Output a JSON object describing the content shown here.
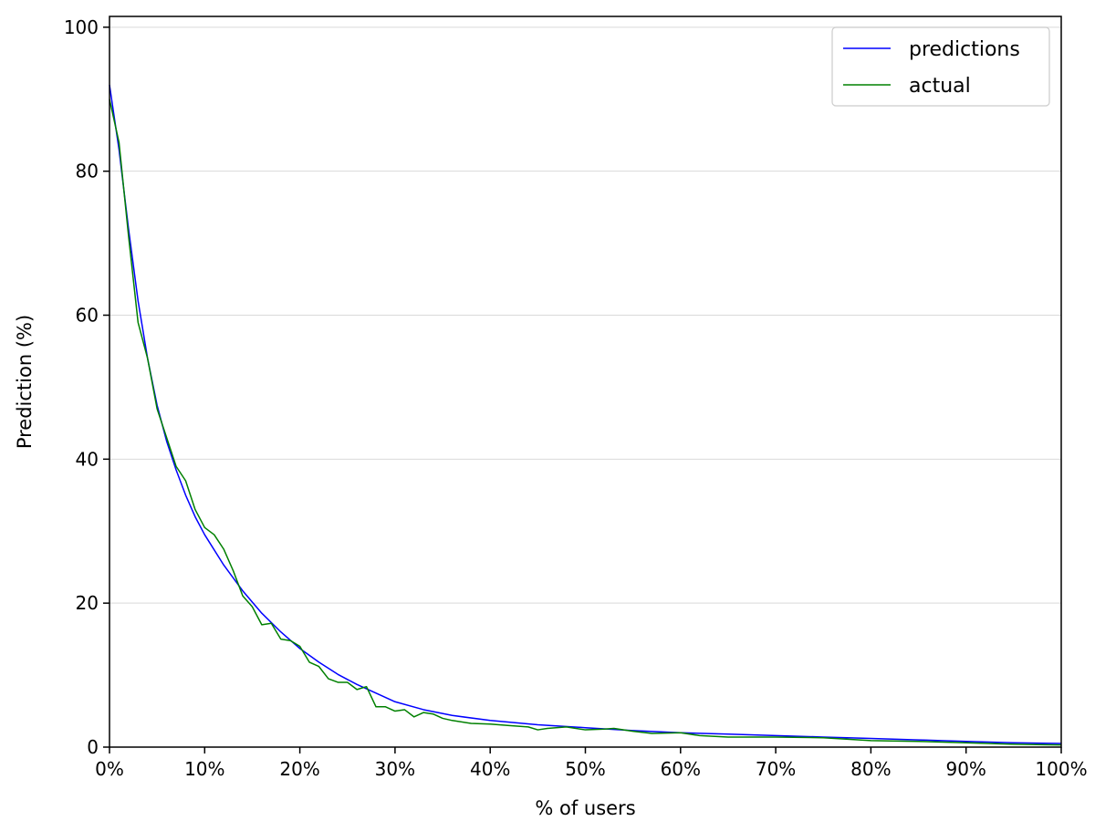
{
  "chart_data": {
    "type": "line",
    "title": "",
    "xlabel": "% of users",
    "ylabel": "Prediction (%)",
    "xlim": [
      0,
      100
    ],
    "ylim": [
      0,
      101.5
    ],
    "x_ticks": [
      0,
      10,
      20,
      30,
      40,
      50,
      60,
      70,
      80,
      90,
      100
    ],
    "x_tick_labels": [
      "0%",
      "10%",
      "20%",
      "30%",
      "40%",
      "50%",
      "60%",
      "70%",
      "80%",
      "90%",
      "100%"
    ],
    "y_ticks": [
      0,
      20,
      40,
      60,
      80,
      100
    ],
    "y_tick_labels": [
      "0",
      "20",
      "40",
      "60",
      "80",
      "100"
    ],
    "grid": "horizontal",
    "legend": "top-right",
    "series": [
      {
        "name": "predictions",
        "color": "#0000ff",
        "x": [
          0,
          1,
          2,
          3,
          4,
          5,
          6,
          7,
          8,
          9,
          10,
          12,
          14,
          16,
          18,
          20,
          22,
          24,
          26,
          28,
          30,
          33,
          36,
          40,
          45,
          50,
          55,
          60,
          65,
          70,
          75,
          80,
          85,
          90,
          95,
          100
        ],
        "y": [
          92,
          83,
          72,
          62,
          54,
          47.5,
          42.5,
          38.5,
          35,
          32,
          29.5,
          25.3,
          21.7,
          18.6,
          16,
          13.7,
          11.8,
          10.1,
          8.7,
          7.5,
          6.3,
          5.2,
          4.4,
          3.7,
          3.1,
          2.7,
          2.3,
          2.0,
          1.8,
          1.6,
          1.4,
          1.2,
          1.0,
          0.8,
          0.6,
          0.5
        ]
      },
      {
        "name": "actual",
        "color": "#008000",
        "x": [
          0,
          1,
          2,
          3,
          4,
          5,
          6,
          7,
          8,
          9,
          10,
          11,
          12,
          13,
          14,
          15,
          16,
          17,
          18,
          19,
          20,
          21,
          22,
          23,
          24,
          25,
          26,
          27,
          28,
          29,
          30,
          31,
          32,
          33,
          34,
          35,
          36,
          38,
          40,
          42,
          44,
          45,
          46,
          48,
          50,
          52,
          53,
          55,
          57,
          60,
          62,
          65,
          70,
          75,
          80,
          85,
          90,
          95,
          100
        ],
        "y": [
          90,
          84,
          71,
          59,
          54,
          47,
          43,
          39,
          37,
          33,
          30.5,
          29.5,
          27.5,
          24.5,
          21,
          19.5,
          17,
          17.2,
          15,
          14.8,
          14,
          11.8,
          11.2,
          9.5,
          9,
          9,
          8,
          8.4,
          5.6,
          5.6,
          5,
          5.2,
          4.2,
          4.8,
          4.6,
          4.0,
          3.7,
          3.3,
          3.2,
          3.0,
          2.8,
          2.4,
          2.6,
          2.8,
          2.4,
          2.5,
          2.6,
          2.2,
          1.9,
          2.0,
          1.6,
          1.4,
          1.4,
          1.3,
          0.9,
          0.8,
          0.6,
          0.4,
          0.3
        ]
      }
    ]
  }
}
